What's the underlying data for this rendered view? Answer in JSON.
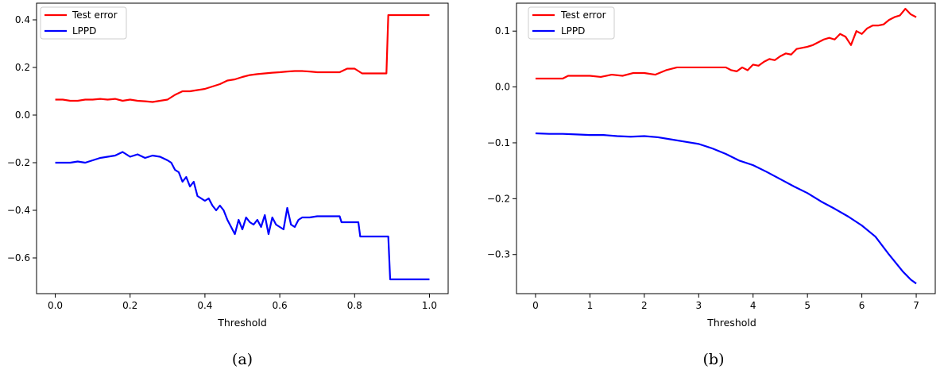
{
  "figure": {
    "captions": [
      "(a)",
      "(b)"
    ]
  },
  "chart_data": [
    {
      "type": "line",
      "caption": "(a)",
      "xlabel": "Threshold",
      "ylabel": "",
      "xlim": [
        -0.05,
        1.05
      ],
      "ylim": [
        -0.75,
        0.47
      ],
      "xticks": [
        0.0,
        0.2,
        0.4,
        0.6,
        0.8,
        1.0
      ],
      "xtick_labels": [
        "0.0",
        "0.2",
        "0.4",
        "0.6",
        "0.8",
        "1.0"
      ],
      "yticks": [
        -0.6,
        -0.4,
        -0.2,
        0.0,
        0.2,
        0.4
      ],
      "ytick_labels": [
        "−0.6",
        "−0.4",
        "−0.2",
        "0.0",
        "0.2",
        "0.4"
      ],
      "grid": false,
      "legend_position": "top-left",
      "series": [
        {
          "name": "Test error",
          "color": "#ff0000",
          "x": [
            0.0,
            0.02,
            0.04,
            0.06,
            0.08,
            0.1,
            0.12,
            0.14,
            0.16,
            0.18,
            0.2,
            0.22,
            0.24,
            0.26,
            0.28,
            0.3,
            0.32,
            0.34,
            0.36,
            0.38,
            0.4,
            0.42,
            0.44,
            0.46,
            0.48,
            0.5,
            0.52,
            0.54,
            0.56,
            0.58,
            0.6,
            0.62,
            0.64,
            0.66,
            0.68,
            0.7,
            0.72,
            0.74,
            0.76,
            0.78,
            0.8,
            0.82,
            0.84,
            0.86,
            0.88,
            0.885,
            0.89,
            0.9,
            0.92,
            0.94,
            0.96,
            0.98,
            1.0
          ],
          "y": [
            0.065,
            0.065,
            0.06,
            0.06,
            0.065,
            0.065,
            0.068,
            0.065,
            0.068,
            0.06,
            0.065,
            0.06,
            0.058,
            0.055,
            0.06,
            0.065,
            0.085,
            0.1,
            0.1,
            0.105,
            0.11,
            0.12,
            0.13,
            0.145,
            0.15,
            0.16,
            0.168,
            0.172,
            0.175,
            0.178,
            0.18,
            0.183,
            0.185,
            0.185,
            0.183,
            0.18,
            0.18,
            0.18,
            0.18,
            0.195,
            0.195,
            0.175,
            0.175,
            0.175,
            0.175,
            0.175,
            0.42,
            0.42,
            0.42,
            0.42,
            0.42,
            0.42,
            0.42
          ]
        },
        {
          "name": "LPPD",
          "color": "#0000ff",
          "x": [
            0.0,
            0.02,
            0.04,
            0.06,
            0.08,
            0.1,
            0.12,
            0.14,
            0.16,
            0.18,
            0.2,
            0.22,
            0.24,
            0.26,
            0.28,
            0.3,
            0.31,
            0.32,
            0.33,
            0.34,
            0.35,
            0.36,
            0.37,
            0.38,
            0.39,
            0.4,
            0.41,
            0.42,
            0.43,
            0.44,
            0.45,
            0.46,
            0.47,
            0.48,
            0.49,
            0.5,
            0.51,
            0.52,
            0.53,
            0.54,
            0.55,
            0.56,
            0.57,
            0.58,
            0.59,
            0.6,
            0.61,
            0.62,
            0.63,
            0.64,
            0.65,
            0.66,
            0.68,
            0.7,
            0.72,
            0.74,
            0.76,
            0.765,
            0.78,
            0.8,
            0.81,
            0.815,
            0.84,
            0.86,
            0.88,
            0.89,
            0.895,
            0.92,
            0.94,
            0.96,
            0.98,
            1.0
          ],
          "y": [
            -0.2,
            -0.2,
            -0.2,
            -0.195,
            -0.2,
            -0.19,
            -0.18,
            -0.175,
            -0.17,
            -0.155,
            -0.175,
            -0.165,
            -0.18,
            -0.17,
            -0.175,
            -0.19,
            -0.2,
            -0.23,
            -0.24,
            -0.28,
            -0.26,
            -0.3,
            -0.28,
            -0.34,
            -0.35,
            -0.36,
            -0.35,
            -0.38,
            -0.4,
            -0.38,
            -0.4,
            -0.44,
            -0.47,
            -0.5,
            -0.44,
            -0.48,
            -0.43,
            -0.45,
            -0.46,
            -0.44,
            -0.47,
            -0.42,
            -0.5,
            -0.43,
            -0.46,
            -0.47,
            -0.48,
            -0.39,
            -0.46,
            -0.47,
            -0.44,
            -0.43,
            -0.43,
            -0.425,
            -0.425,
            -0.425,
            -0.425,
            -0.45,
            -0.45,
            -0.45,
            -0.45,
            -0.51,
            -0.51,
            -0.51,
            -0.51,
            -0.51,
            -0.69,
            -0.69,
            -0.69,
            -0.69,
            -0.69,
            -0.69
          ]
        }
      ]
    },
    {
      "type": "line",
      "caption": "(b)",
      "xlabel": "Threshold",
      "ylabel": "",
      "xlim": [
        -0.35,
        7.35
      ],
      "ylim": [
        -0.37,
        0.15
      ],
      "xticks": [
        0,
        1,
        2,
        3,
        4,
        5,
        6,
        7
      ],
      "xtick_labels": [
        "0",
        "1",
        "2",
        "3",
        "4",
        "5",
        "6",
        "7"
      ],
      "yticks": [
        -0.3,
        -0.2,
        -0.1,
        0.0,
        0.1
      ],
      "ytick_labels": [
        "−0.3",
        "−0.2",
        "−0.1",
        "0.0",
        "0.1"
      ],
      "grid": false,
      "legend_position": "top-left",
      "series": [
        {
          "name": "Test error",
          "color": "#ff0000",
          "x": [
            0.0,
            0.3,
            0.5,
            0.6,
            0.8,
            1.0,
            1.2,
            1.4,
            1.6,
            1.8,
            2.0,
            2.2,
            2.4,
            2.6,
            2.8,
            3.0,
            3.2,
            3.4,
            3.5,
            3.6,
            3.7,
            3.8,
            3.9,
            4.0,
            4.1,
            4.2,
            4.3,
            4.4,
            4.5,
            4.6,
            4.7,
            4.8,
            4.9,
            5.0,
            5.1,
            5.2,
            5.3,
            5.4,
            5.5,
            5.6,
            5.7,
            5.8,
            5.9,
            6.0,
            6.1,
            6.2,
            6.3,
            6.4,
            6.5,
            6.6,
            6.7,
            6.8,
            6.9,
            7.0
          ],
          "y": [
            0.015,
            0.015,
            0.015,
            0.02,
            0.02,
            0.02,
            0.018,
            0.022,
            0.02,
            0.025,
            0.025,
            0.022,
            0.03,
            0.035,
            0.035,
            0.035,
            0.035,
            0.035,
            0.035,
            0.03,
            0.028,
            0.035,
            0.03,
            0.04,
            0.038,
            0.045,
            0.05,
            0.048,
            0.055,
            0.06,
            0.058,
            0.068,
            0.07,
            0.072,
            0.075,
            0.08,
            0.085,
            0.088,
            0.085,
            0.095,
            0.09,
            0.075,
            0.1,
            0.095,
            0.105,
            0.11,
            0.11,
            0.112,
            0.12,
            0.125,
            0.128,
            0.14,
            0.13,
            0.125
          ]
        },
        {
          "name": "LPPD",
          "color": "#0000ff",
          "x": [
            0.0,
            0.25,
            0.5,
            0.75,
            1.0,
            1.25,
            1.5,
            1.75,
            2.0,
            2.25,
            2.5,
            2.75,
            3.0,
            3.25,
            3.5,
            3.75,
            4.0,
            4.25,
            4.5,
            4.75,
            5.0,
            5.25,
            5.5,
            5.75,
            6.0,
            6.25,
            6.5,
            6.75,
            6.9,
            7.0
          ],
          "y": [
            -0.083,
            -0.084,
            -0.084,
            -0.085,
            -0.086,
            -0.086,
            -0.088,
            -0.089,
            -0.088,
            -0.09,
            -0.094,
            -0.098,
            -0.102,
            -0.11,
            -0.12,
            -0.132,
            -0.14,
            -0.152,
            -0.165,
            -0.178,
            -0.19,
            -0.205,
            -0.218,
            -0.232,
            -0.248,
            -0.268,
            -0.3,
            -0.33,
            -0.345,
            -0.352
          ]
        }
      ]
    }
  ]
}
